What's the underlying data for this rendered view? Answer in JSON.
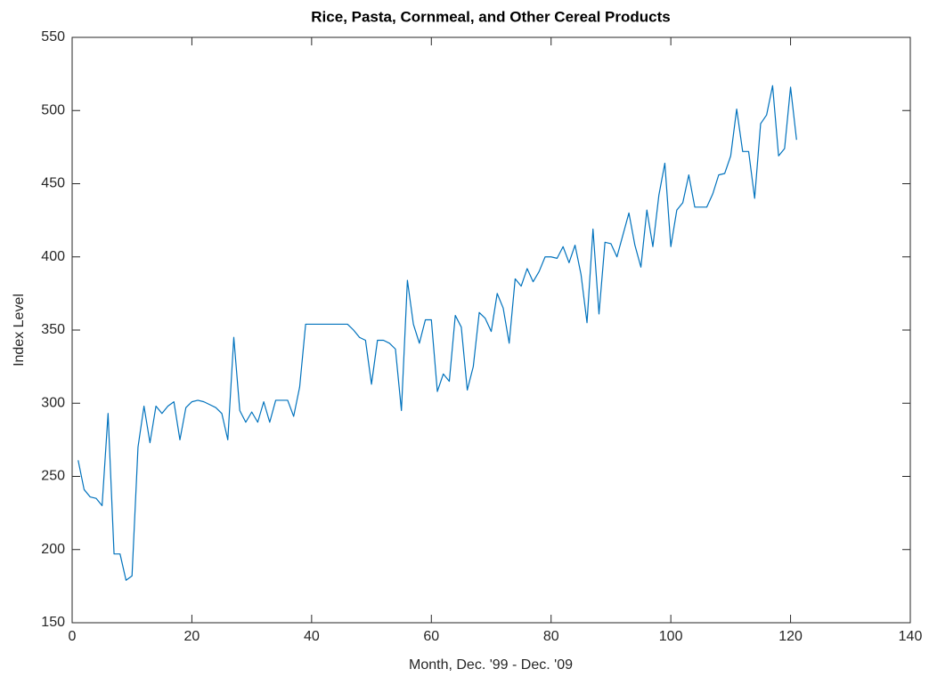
{
  "chart_data": {
    "type": "line",
    "title": "Rice, Pasta, Cornmeal, and Other Cereal Products",
    "xlabel": "Month, Dec. '99 - Dec. '09",
    "ylabel": "Index Level",
    "xlim": [
      0,
      140
    ],
    "xticks": [
      0,
      20,
      40,
      60,
      80,
      100,
      120,
      140
    ],
    "ylim": [
      150,
      550
    ],
    "yticks": [
      150,
      200,
      250,
      300,
      350,
      400,
      450,
      500,
      550
    ],
    "grid": false,
    "x": [
      1,
      2,
      3,
      4,
      5,
      6,
      7,
      8,
      9,
      10,
      11,
      12,
      13,
      14,
      15,
      16,
      17,
      18,
      19,
      20,
      21,
      22,
      23,
      24,
      25,
      26,
      27,
      28,
      29,
      30,
      31,
      32,
      33,
      34,
      35,
      36,
      37,
      38,
      39,
      40,
      41,
      42,
      43,
      44,
      45,
      46,
      47,
      48,
      49,
      50,
      51,
      52,
      53,
      54,
      55,
      56,
      57,
      58,
      59,
      60,
      61,
      62,
      63,
      64,
      65,
      66,
      67,
      68,
      69,
      70,
      71,
      72,
      73,
      74,
      75,
      76,
      77,
      78,
      79,
      80,
      81,
      82,
      83,
      84,
      85,
      86,
      87,
      88,
      89,
      90,
      91,
      92,
      93,
      94,
      95,
      96,
      97,
      98,
      99,
      100,
      101,
      102,
      103,
      104,
      105,
      106,
      107,
      108,
      109,
      110,
      111,
      112,
      113,
      114,
      115,
      116,
      117,
      118,
      119,
      120,
      121
    ],
    "series": [
      {
        "color": "#0072bd",
        "values": [
          261,
          241,
          236,
          235,
          230,
          293,
          197,
          197,
          179,
          182,
          270,
          298,
          273,
          298,
          293,
          298,
          301,
          275,
          297,
          301,
          302,
          301,
          299,
          297,
          293,
          275,
          345,
          295,
          287,
          294,
          287,
          301,
          287,
          302,
          302,
          302,
          291,
          311,
          354,
          354,
          354,
          354,
          354,
          354,
          354,
          354,
          350,
          345,
          343,
          313,
          343,
          343,
          341,
          337,
          295,
          384,
          354,
          341,
          357,
          357,
          308,
          320,
          315,
          360,
          352,
          309,
          325,
          362,
          358,
          349,
          375,
          365,
          341,
          385,
          380,
          392,
          383,
          390,
          400,
          400,
          399,
          407,
          396,
          408,
          388,
          355,
          419,
          361,
          410,
          409,
          400,
          415,
          430,
          408,
          393,
          432,
          407,
          442,
          464,
          407,
          432,
          437,
          456,
          434,
          434,
          434,
          443,
          456,
          457,
          469,
          501,
          472,
          472,
          440,
          491,
          497,
          517,
          469,
          474,
          516,
          480
        ]
      }
    ]
  }
}
